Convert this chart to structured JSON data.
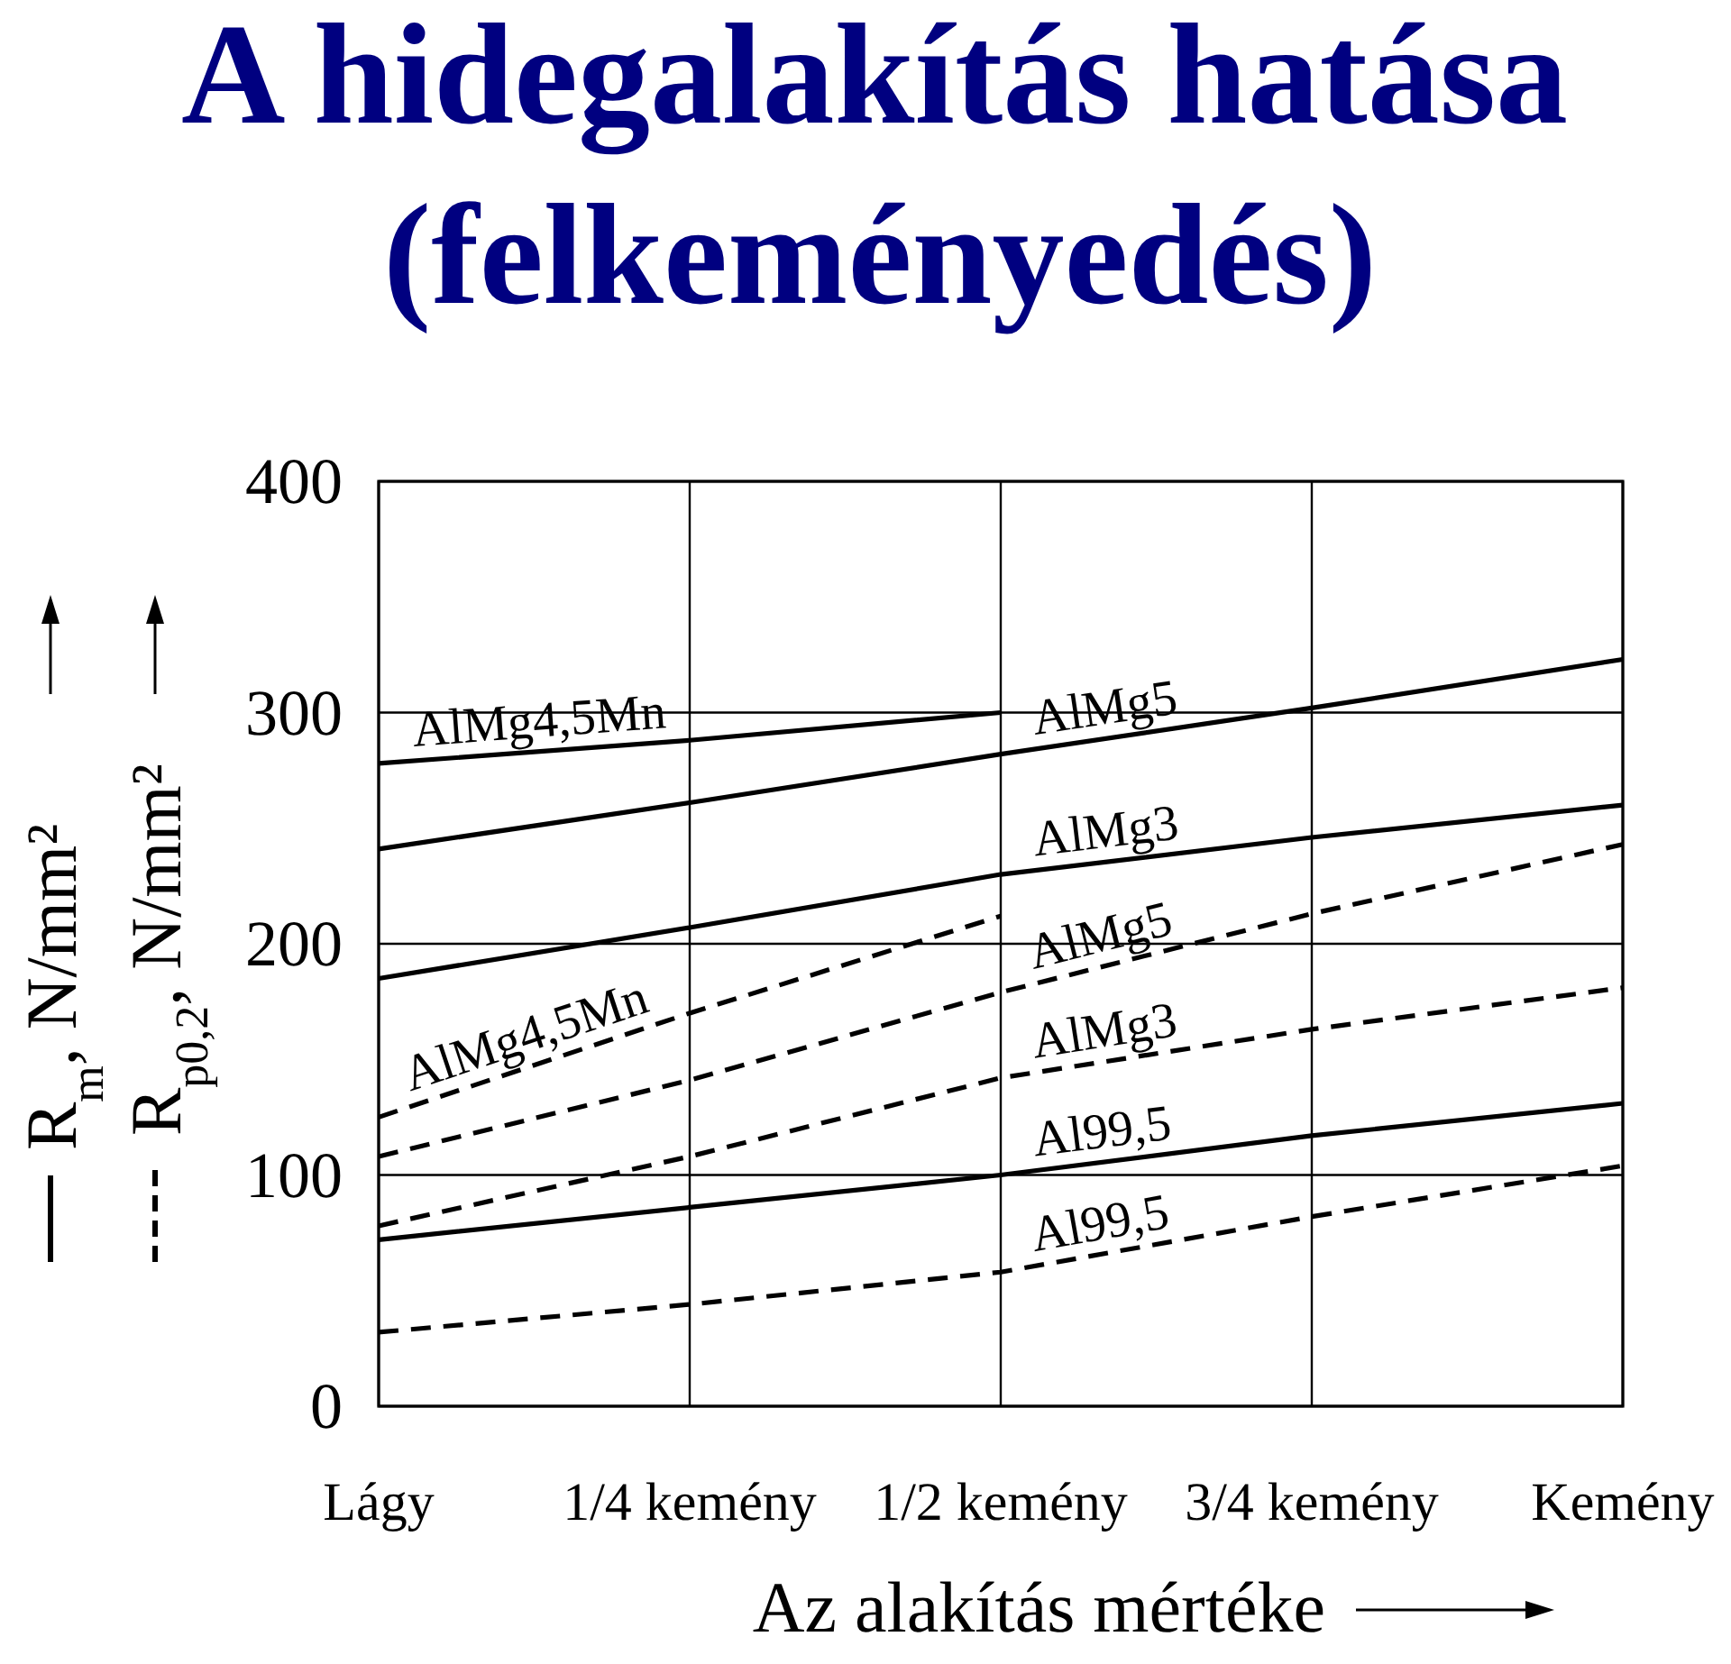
{
  "chart_data": {
    "type": "line",
    "title": "A hidegalakítás hatása",
    "subtitle": "(felkeményedés)",
    "xlabel": "Az alakítás mértéke",
    "ylabel": "R$_{m}$, N/mm²",
    "annotations": [
      "R$_{p0,2}$, N/mm²"
    ],
    "categories": [
      "Lágy",
      "1/4 kemény",
      "1/2 kemény",
      "3/4 kemény",
      "Kemény"
    ],
    "series": [
      {
        "name": "AlMg4,5Mn",
        "color": "#000000",
        "line_style": "solid",
        "values": [
          278,
          288,
          300,
          null,
          null
        ]
      },
      {
        "name": "AlMg5",
        "color": "#000000",
        "line_style": "solid",
        "values": [
          241,
          261,
          282,
          302,
          323
        ]
      },
      {
        "name": "AlMg3",
        "color": "#000000",
        "line_style": "solid",
        "values": [
          185,
          207,
          230,
          246,
          260
        ]
      },
      {
        "name": "AlMg4,5Mn",
        "color": "#000000",
        "line_style": "dashed",
        "values": [
          125,
          170,
          212,
          null,
          null
        ]
      },
      {
        "name": "AlMg5",
        "color": "#000000",
        "line_style": "dashed",
        "values": [
          108,
          141,
          179,
          213,
          243
        ]
      },
      {
        "name": "AlMg3",
        "color": "#000000",
        "line_style": "dashed",
        "values": [
          78,
          108,
          142,
          163,
          181
        ]
      },
      {
        "name": "Al99,5",
        "color": "#000000",
        "line_style": "solid",
        "values": [
          72,
          86,
          100,
          117,
          131
        ]
      },
      {
        "name": "Al99,5",
        "color": "#000000",
        "line_style": "dashed",
        "values": [
          32,
          44,
          58,
          82,
          104
        ]
      }
    ],
    "ylim": [
      0,
      400
    ],
    "yticks": [
      0,
      100,
      200,
      300,
      400
    ],
    "grid": true
  }
}
